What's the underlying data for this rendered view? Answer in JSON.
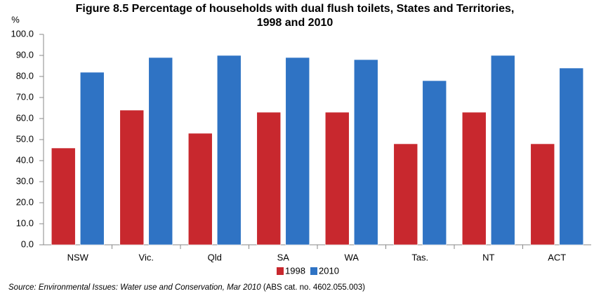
{
  "chart_data": {
    "type": "bar",
    "title": [
      "Figure 8.5 Percentage of households with dual flush toilets, States and Territories,",
      "1998 and 2010"
    ],
    "y_label": "%",
    "categories": [
      "NSW",
      "Vic.",
      "Qld",
      "SA",
      "WA",
      "Tas.",
      "NT",
      "ACT"
    ],
    "series": [
      {
        "name": "1998",
        "color": "#c8282e",
        "values": [
          46,
          64,
          53,
          63,
          63,
          48,
          63,
          48
        ]
      },
      {
        "name": "2010",
        "color": "#2f73c4",
        "values": [
          82,
          89,
          90,
          89,
          88,
          78,
          90,
          84
        ]
      }
    ],
    "ylim": [
      0,
      100
    ],
    "yticks": [
      {
        "value": 0,
        "label": "0.0"
      },
      {
        "value": 10,
        "label": "10.0"
      },
      {
        "value": 20,
        "label": "20.0"
      },
      {
        "value": 30,
        "label": "30.0"
      },
      {
        "value": 40,
        "label": "40.0"
      },
      {
        "value": 50,
        "label": "50.0"
      },
      {
        "value": 60,
        "label": "60.0"
      },
      {
        "value": 70,
        "label": "70.0"
      },
      {
        "value": 80,
        "label": "80.0"
      },
      {
        "value": 90,
        "label": "90.0"
      },
      {
        "value": 100,
        "label": "100.0"
      }
    ],
    "grid": false,
    "source": [
      "Source:  Environmental Issues: Water use and Conservation, Mar 2010",
      " (ABS cat. no. 4602.055.003)"
    ]
  }
}
